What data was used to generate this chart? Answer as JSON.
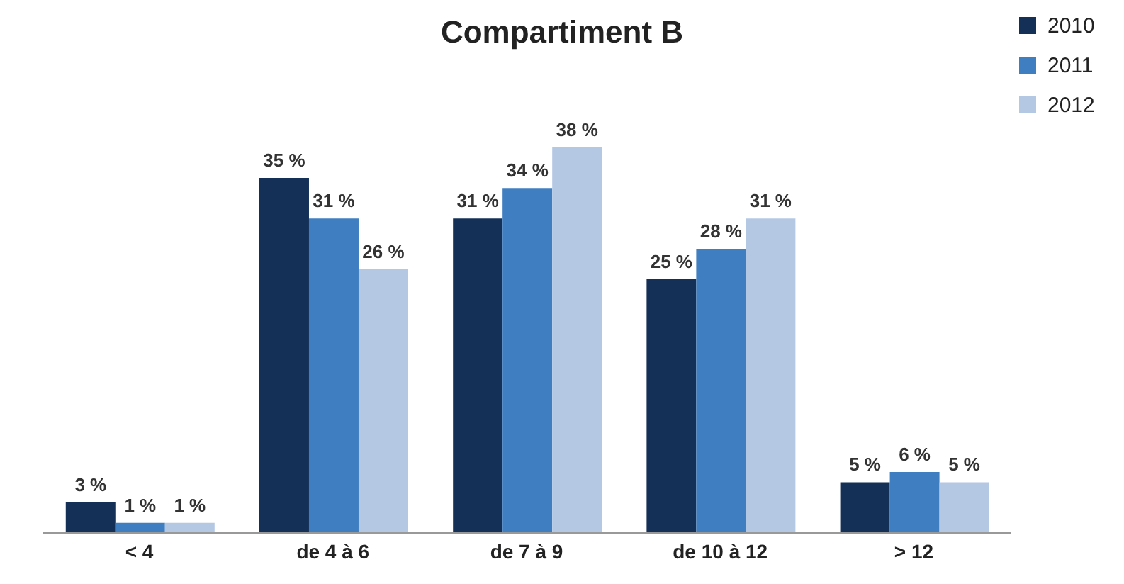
{
  "chart_data": {
    "type": "bar",
    "title": "Compartiment B",
    "categories": [
      "< 4",
      "de 4 à 6",
      "de 7 à 9",
      "de 10 à 12",
      "> 12"
    ],
    "series": [
      {
        "name": "2010",
        "color": "#143057",
        "values": [
          3,
          35,
          31,
          25,
          5
        ],
        "value_labels": [
          "3 %",
          "35 %",
          "31 %",
          "25 %",
          "5 %"
        ]
      },
      {
        "name": "2011",
        "color": "#3f7ec0",
        "values": [
          1,
          31,
          34,
          28,
          6
        ],
        "value_labels": [
          "1 %",
          "31 %",
          "34 %",
          "28 %",
          "6 %"
        ]
      },
      {
        "name": "2012",
        "color": "#b4c8e4",
        "values": [
          1,
          26,
          38,
          31,
          5
        ],
        "value_labels": [
          "1 %",
          "26 %",
          "38 %",
          "31 %",
          "5 %"
        ]
      }
    ],
    "grid": false,
    "legend": "top right"
  }
}
